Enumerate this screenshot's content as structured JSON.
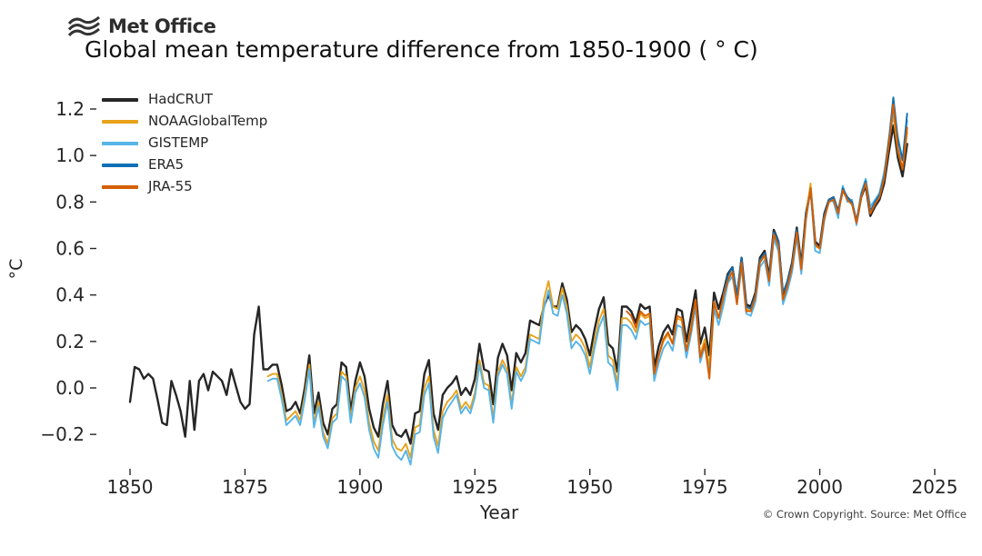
{
  "brand": {
    "logo_text": "Met Office"
  },
  "footer": {
    "copyright": "© Crown Copyright. Source: Met Office"
  },
  "chart_data": {
    "type": "line",
    "title": "Global mean temperature difference from 1850-1900 ( ° C)",
    "xlabel": "Year",
    "ylabel": "°C",
    "xlim": [
      1843.5,
      2031.5
    ],
    "ylim": [
      -0.34,
      1.3
    ],
    "xticks": [
      1850,
      1875,
      1900,
      1925,
      1950,
      1975,
      2000,
      2025
    ],
    "yticks": [
      -0.2,
      0.0,
      0.2,
      0.4,
      0.6,
      0.8,
      1.0,
      1.2
    ],
    "grid": false,
    "legend_position": "upper-left",
    "x_unit": "year",
    "end_year": 2019,
    "series": [
      {
        "name": "HadCRUT",
        "color": "#262626",
        "start_year": 1850,
        "values": [
          -0.06,
          0.09,
          0.08,
          0.04,
          0.06,
          0.04,
          -0.05,
          -0.15,
          -0.16,
          0.03,
          -0.03,
          -0.1,
          -0.21,
          0.03,
          -0.18,
          0.03,
          0.06,
          -0.01,
          0.07,
          0.05,
          0.03,
          -0.03,
          0.08,
          0.01,
          -0.06,
          -0.09,
          -0.07,
          0.23,
          0.35,
          0.08,
          0.08,
          0.1,
          0.1,
          0.01,
          -0.1,
          -0.09,
          -0.06,
          -0.11,
          0.0,
          0.14,
          -0.11,
          -0.02,
          -0.15,
          -0.2,
          -0.09,
          -0.07,
          0.11,
          0.09,
          -0.1,
          0.03,
          0.11,
          0.05,
          -0.09,
          -0.17,
          -0.21,
          -0.07,
          0.03,
          -0.16,
          -0.2,
          -0.21,
          -0.18,
          -0.24,
          -0.11,
          -0.1,
          0.06,
          0.12,
          -0.11,
          -0.18,
          -0.03,
          0.0,
          0.02,
          0.05,
          -0.03,
          0.0,
          -0.03,
          0.04,
          0.19,
          0.08,
          0.07,
          -0.07,
          0.13,
          0.19,
          0.14,
          -0.01,
          0.15,
          0.11,
          0.15,
          0.29,
          0.28,
          0.27,
          0.35,
          0.4,
          0.35,
          0.35,
          0.45,
          0.38,
          0.24,
          0.27,
          0.25,
          0.21,
          0.14,
          0.25,
          0.34,
          0.39,
          0.19,
          0.17,
          0.07,
          0.35,
          0.35,
          0.33,
          0.28,
          0.36,
          0.34,
          0.35,
          0.09,
          0.18,
          0.24,
          0.27,
          0.23,
          0.34,
          0.33,
          0.2,
          0.31,
          0.42,
          0.19,
          0.26,
          0.14,
          0.41,
          0.34,
          0.41,
          0.49,
          0.52,
          0.39,
          0.56,
          0.36,
          0.35,
          0.41,
          0.56,
          0.59,
          0.48,
          0.68,
          0.63,
          0.4,
          0.46,
          0.54,
          0.69,
          0.53,
          0.75,
          0.86,
          0.63,
          0.61,
          0.75,
          0.81,
          0.82,
          0.76,
          0.85,
          0.82,
          0.8,
          0.71,
          0.82,
          0.87,
          0.74,
          0.78,
          0.81,
          0.88,
          1.01,
          1.13,
          0.99,
          0.91,
          1.05
        ]
      },
      {
        "name": "NOAAGlobalTemp",
        "color": "#E8A21A",
        "start_year": 1880,
        "values": [
          0.05,
          0.06,
          0.06,
          -0.03,
          -0.14,
          -0.12,
          -0.1,
          -0.14,
          -0.03,
          0.1,
          -0.15,
          -0.06,
          -0.19,
          -0.24,
          -0.13,
          -0.11,
          0.07,
          0.05,
          -0.13,
          0.0,
          0.05,
          -0.01,
          -0.15,
          -0.23,
          -0.27,
          -0.13,
          -0.03,
          -0.22,
          -0.26,
          -0.27,
          -0.24,
          -0.3,
          -0.17,
          -0.16,
          0.0,
          0.05,
          -0.18,
          -0.25,
          -0.1,
          -0.06,
          -0.04,
          -0.01,
          -0.09,
          -0.06,
          -0.09,
          -0.02,
          0.12,
          0.02,
          0.01,
          -0.13,
          0.07,
          0.12,
          0.08,
          -0.07,
          0.09,
          0.05,
          0.09,
          0.23,
          0.22,
          0.21,
          0.38,
          0.46,
          0.35,
          0.34,
          0.43,
          0.35,
          0.2,
          0.23,
          0.21,
          0.17,
          0.09,
          0.2,
          0.29,
          0.34,
          0.14,
          0.12,
          0.02,
          0.3,
          0.3,
          0.28,
          0.24,
          0.32,
          0.3,
          0.31,
          0.06,
          0.14,
          0.2,
          0.23,
          0.19,
          0.3,
          0.29,
          0.16,
          0.26,
          0.38,
          0.14,
          0.21,
          0.09,
          0.37,
          0.3,
          0.38,
          0.47,
          0.5,
          0.38,
          0.54,
          0.34,
          0.33,
          0.39,
          0.54,
          0.57,
          0.46,
          0.66,
          0.61,
          0.38,
          0.44,
          0.52,
          0.67,
          0.51,
          0.74,
          0.88,
          0.61,
          0.6,
          0.74,
          0.8,
          0.81,
          0.75,
          0.86,
          0.81,
          0.79,
          0.72,
          0.83,
          0.89,
          0.76,
          0.8,
          0.84,
          0.92,
          1.07,
          1.17,
          1.02,
          0.94,
          1.1
        ]
      },
      {
        "name": "GISTEMP",
        "color": "#56B4E9",
        "start_year": 1880,
        "values": [
          0.03,
          0.04,
          0.04,
          -0.05,
          -0.16,
          -0.14,
          -0.12,
          -0.16,
          -0.05,
          0.08,
          -0.17,
          -0.08,
          -0.21,
          -0.26,
          -0.15,
          -0.13,
          0.05,
          0.03,
          -0.15,
          -0.02,
          0.02,
          -0.04,
          -0.18,
          -0.26,
          -0.3,
          -0.16,
          -0.06,
          -0.25,
          -0.29,
          -0.31,
          -0.27,
          -0.33,
          -0.2,
          -0.19,
          -0.03,
          0.02,
          -0.21,
          -0.28,
          -0.13,
          -0.09,
          -0.06,
          -0.03,
          -0.11,
          -0.08,
          -0.11,
          -0.04,
          0.1,
          0.0,
          -0.01,
          -0.15,
          0.05,
          0.1,
          0.06,
          -0.09,
          0.07,
          0.03,
          0.07,
          0.21,
          0.2,
          0.19,
          0.34,
          0.42,
          0.32,
          0.31,
          0.4,
          0.32,
          0.17,
          0.2,
          0.18,
          0.14,
          0.06,
          0.17,
          0.26,
          0.31,
          0.11,
          0.09,
          -0.01,
          0.27,
          0.27,
          0.25,
          0.21,
          0.29,
          0.27,
          0.28,
          0.03,
          0.11,
          0.17,
          0.2,
          0.16,
          0.27,
          0.26,
          0.13,
          0.23,
          0.35,
          0.11,
          0.18,
          0.06,
          0.34,
          0.27,
          0.35,
          0.45,
          0.48,
          0.36,
          0.52,
          0.32,
          0.31,
          0.37,
          0.52,
          0.55,
          0.44,
          0.64,
          0.59,
          0.36,
          0.42,
          0.5,
          0.65,
          0.49,
          0.72,
          0.86,
          0.59,
          0.58,
          0.72,
          0.81,
          0.8,
          0.73,
          0.87,
          0.8,
          0.81,
          0.7,
          0.84,
          0.9,
          0.78,
          0.81,
          0.84,
          0.93,
          1.05,
          1.19,
          1.08,
          0.98,
          1.15
        ]
      },
      {
        "name": "ERA5",
        "color": "#0F6FB4",
        "start_year": 1979,
        "values": [
          0.4,
          0.48,
          0.52,
          0.4,
          0.56,
          0.35,
          0.34,
          0.4,
          0.55,
          0.58,
          0.47,
          0.67,
          0.63,
          0.41,
          0.46,
          0.53,
          0.68,
          0.52,
          0.74,
          0.85,
          0.62,
          0.6,
          0.74,
          0.81,
          0.82,
          0.76,
          0.86,
          0.82,
          0.8,
          0.72,
          0.83,
          0.89,
          0.76,
          0.8,
          0.83,
          0.91,
          1.06,
          1.25,
          1.07,
          0.98,
          1.18
        ]
      },
      {
        "name": "JRA-55",
        "color": "#D55E00",
        "start_year": 1958,
        "values": [
          0.33,
          0.31,
          0.26,
          0.33,
          0.31,
          0.32,
          0.06,
          0.14,
          0.21,
          0.24,
          0.19,
          0.31,
          0.3,
          0.16,
          0.25,
          0.38,
          0.13,
          0.19,
          0.04,
          0.37,
          0.3,
          0.39,
          0.46,
          0.5,
          0.36,
          0.54,
          0.33,
          0.33,
          0.39,
          0.54,
          0.57,
          0.46,
          0.66,
          0.61,
          0.38,
          0.44,
          0.52,
          0.67,
          0.51,
          0.73,
          0.86,
          0.62,
          0.6,
          0.73,
          0.8,
          0.81,
          0.75,
          0.85,
          0.81,
          0.79,
          0.71,
          0.82,
          0.88,
          0.75,
          0.79,
          0.82,
          0.9,
          1.04,
          1.22,
          1.03,
          0.94,
          1.12
        ]
      }
    ]
  }
}
